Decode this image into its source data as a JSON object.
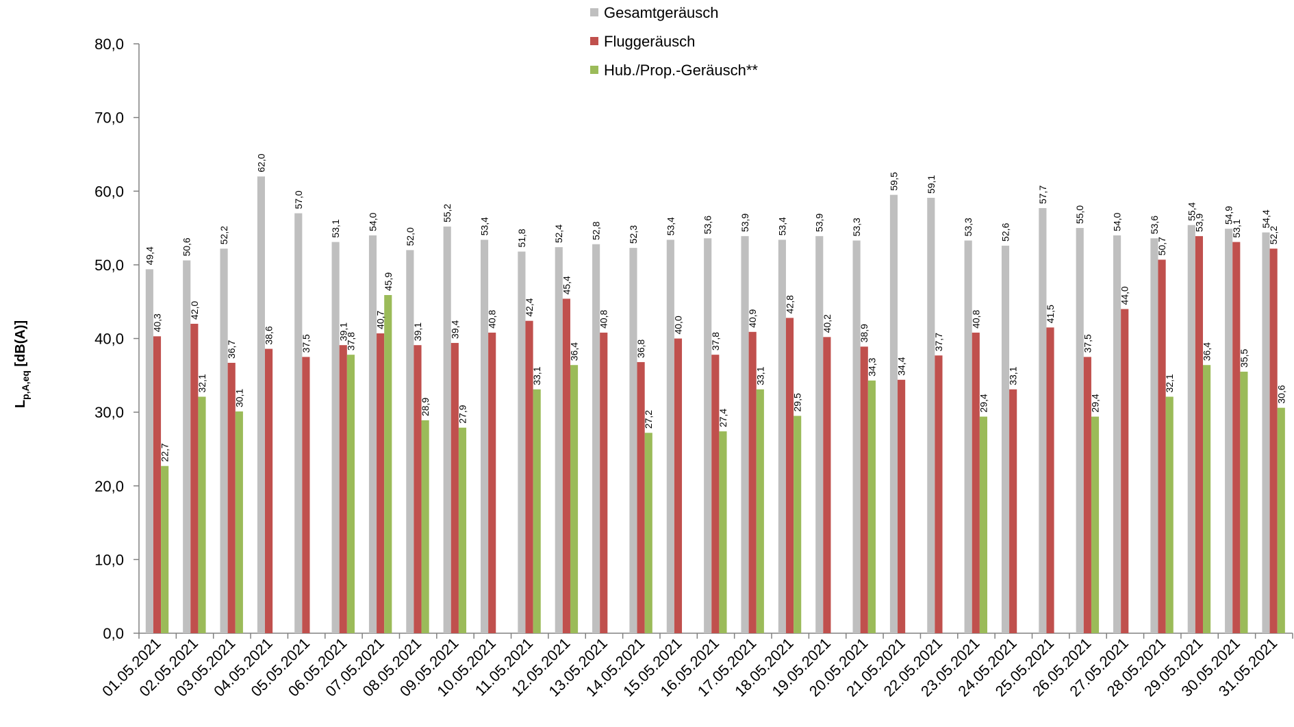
{
  "chart_data": {
    "type": "bar",
    "ylabel": {
      "main": "L",
      "sub": "p,A,eq",
      "unit": " [dB(A)]"
    },
    "ylim": [
      0,
      80
    ],
    "yticks": [
      "0,0",
      "10,0",
      "20,0",
      "30,0",
      "40,0",
      "50,0",
      "60,0",
      "70,0",
      "80,0"
    ],
    "grid": false,
    "legend_position": "top-center",
    "categories": [
      "01.05.2021",
      "02.05.2021",
      "03.05.2021",
      "04.05.2021",
      "05.05.2021",
      "06.05.2021",
      "07.05.2021",
      "08.05.2021",
      "09.05.2021",
      "10.05.2021",
      "11.05.2021",
      "12.05.2021",
      "13.05.2021",
      "14.05.2021",
      "15.05.2021",
      "16.05.2021",
      "17.05.2021",
      "18.05.2021",
      "19.05.2021",
      "20.05.2021",
      "21.05.2021",
      "22.05.2021",
      "23.05.2021",
      "24.05.2021",
      "25.05.2021",
      "26.05.2021",
      "27.05.2021",
      "28.05.2021",
      "29.05.2021",
      "30.05.2021",
      "31.05.2021"
    ],
    "series": [
      {
        "name": "Gesamtgeräusch",
        "color": "#bfbfbf",
        "values": [
          49.4,
          50.6,
          52.2,
          62.0,
          57.0,
          53.1,
          54.0,
          52.0,
          55.2,
          53.4,
          51.8,
          52.4,
          52.8,
          52.3,
          53.4,
          53.6,
          53.9,
          53.4,
          53.9,
          53.3,
          59.5,
          59.1,
          53.3,
          52.6,
          57.7,
          55.0,
          54.0,
          53.6,
          55.4,
          54.9,
          54.4
        ],
        "labels": [
          "49,4",
          "50,6",
          "52,2",
          "62,0",
          "57,0",
          "53,1",
          "54,0",
          "52,0",
          "55,2",
          "53,4",
          "51,8",
          "52,4",
          "52,8",
          "52,3",
          "53,4",
          "53,6",
          "53,9",
          "53,4",
          "53,9",
          "53,3",
          "59,5",
          "59,1",
          "53,3",
          "52,6",
          "57,7",
          "55,0",
          "54,0",
          "53,6",
          "55,4",
          "54,9",
          "54,4"
        ]
      },
      {
        "name": "Fluggeräusch",
        "color": "#c0504d",
        "values": [
          40.3,
          42.0,
          36.7,
          38.6,
          37.5,
          39.1,
          40.7,
          39.1,
          39.4,
          40.8,
          42.4,
          45.4,
          40.8,
          36.8,
          40.0,
          37.8,
          40.9,
          42.8,
          40.2,
          38.9,
          34.4,
          37.7,
          40.8,
          33.1,
          41.5,
          37.5,
          44.0,
          50.7,
          53.9,
          53.1,
          52.2
        ],
        "labels": [
          "40,3",
          "42,0",
          "36,7",
          "38,6",
          "37,5",
          "39,1",
          "40,7",
          "39,1",
          "39,4",
          "40,8",
          "42,4",
          "45,4",
          "40,8",
          "36,8",
          "40,0",
          "37,8",
          "40,9",
          "42,8",
          "40,2",
          "38,9",
          "34,4",
          "37,7",
          "40,8",
          "33,1",
          "41,5",
          "37,5",
          "44,0",
          "50,7",
          "53,9",
          "53,1",
          "52,2"
        ]
      },
      {
        "name": "Hub./Prop.-Geräusch**",
        "color": "#9bbb59",
        "values": [
          22.7,
          32.1,
          30.1,
          null,
          null,
          37.8,
          45.9,
          28.9,
          27.9,
          null,
          33.1,
          36.4,
          null,
          27.2,
          null,
          27.4,
          33.1,
          29.5,
          null,
          34.3,
          null,
          null,
          29.4,
          null,
          null,
          29.4,
          null,
          32.1,
          36.4,
          35.5,
          30.6
        ],
        "labels": [
          "22,7",
          "32,1",
          "30,1",
          null,
          null,
          "37,8",
          "45,9",
          "28,9",
          "27,9",
          null,
          "33,1",
          "36,4",
          null,
          "27,2",
          null,
          "27,4",
          "33,1",
          "29,5",
          null,
          "34,3",
          null,
          null,
          "29,4",
          null,
          null,
          "29,4",
          null,
          "32,1",
          "36,4",
          "35,5",
          "30,6"
        ]
      }
    ]
  }
}
